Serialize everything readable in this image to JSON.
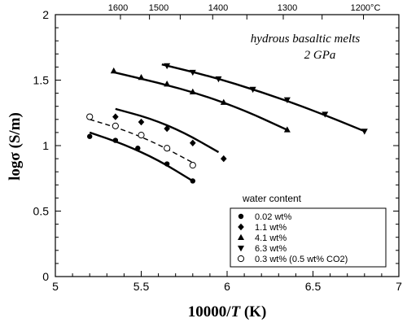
{
  "chart_data": {
    "type": "scatter",
    "title": "",
    "annotation": [
      "hydrous basaltic melts",
      "2 GPa"
    ],
    "xlabel_prefix": "10000/",
    "xlabel_var": "T",
    "xlabel_unit": " (K)",
    "ylabel": "logσ (S/m)",
    "xlim": [
      5,
      7
    ],
    "ylim": [
      0,
      2
    ],
    "xticks": [
      5,
      5.5,
      6,
      6.5,
      7
    ],
    "xtick_labels": [
      "5",
      "5.5",
      "6",
      "6.5",
      "7"
    ],
    "xminor": [
      5.1,
      5.2,
      5.3,
      5.4,
      5.6,
      5.7,
      5.8,
      5.9,
      6.1,
      6.2,
      6.3,
      6.4,
      6.6,
      6.7,
      6.8,
      6.9
    ],
    "yticks": [
      0,
      0.5,
      1,
      1.5,
      2
    ],
    "ytick_labels": [
      "0",
      "0.5",
      "1",
      "1.5",
      "2"
    ],
    "yminor": [
      0.1,
      0.2,
      0.3,
      0.4,
      0.6,
      0.7,
      0.8,
      0.9,
      1.1,
      1.2,
      1.3,
      1.4,
      1.6,
      1.7,
      1.8,
      1.9
    ],
    "top_axis": {
      "ticks": [
        {
          "x": 5.379,
          "label": "1600"
        },
        {
          "x": 5.548,
          "label": ""
        },
        {
          "x": 5.727,
          "label": "1500"
        },
        {
          "x": 5.916,
          "label": ""
        },
        {
          "x": 6.115,
          "label": "1400"
        },
        {
          "x": 6.327,
          "label": ""
        },
        {
          "x": 6.553,
          "label": "1300"
        },
        {
          "x": 6.794,
          "label": ""
        }
      ],
      "labels": [
        {
          "x": 5.37,
          "label": "1600"
        },
        {
          "x": 5.5,
          "label": "1500"
        },
        {
          "x": 5.7,
          "label": "1400"
        },
        {
          "x": 6.0,
          "label": "1300"
        },
        {
          "x": 6.5,
          "label": "1200°C"
        }
      ]
    },
    "legend_title": "water content",
    "legend_position": "bottom-right",
    "series": [
      {
        "name": "0.02 wt%",
        "marker": "circle-filled",
        "points": [
          [
            5.2,
            1.07
          ],
          [
            5.35,
            1.04
          ],
          [
            5.48,
            0.98
          ],
          [
            5.65,
            0.86
          ],
          [
            5.8,
            0.73
          ]
        ],
        "fit": [
          [
            5.2,
            1.1
          ],
          [
            5.4,
            1.01
          ],
          [
            5.6,
            0.89
          ],
          [
            5.8,
            0.73
          ]
        ],
        "fit_style": "solid"
      },
      {
        "name": "1.1 wt%",
        "marker": "diamond-filled",
        "points": [
          [
            5.35,
            1.22
          ],
          [
            5.5,
            1.18
          ],
          [
            5.65,
            1.13
          ],
          [
            5.8,
            1.02
          ],
          [
            5.98,
            0.9
          ]
        ],
        "fit": [
          [
            5.35,
            1.28
          ],
          [
            5.55,
            1.21
          ],
          [
            5.75,
            1.1
          ],
          [
            5.95,
            0.95
          ]
        ],
        "fit_style": "solid"
      },
      {
        "name": "4.1 wt%",
        "marker": "triangle-up-filled",
        "points": [
          [
            5.34,
            1.57
          ],
          [
            5.5,
            1.52
          ],
          [
            5.65,
            1.47
          ],
          [
            5.8,
            1.41
          ],
          [
            5.98,
            1.33
          ],
          [
            6.35,
            1.12
          ]
        ],
        "fit": [
          [
            5.34,
            1.56
          ],
          [
            5.6,
            1.48
          ],
          [
            5.85,
            1.39
          ],
          [
            6.1,
            1.27
          ],
          [
            6.35,
            1.12
          ]
        ],
        "fit_style": "solid"
      },
      {
        "name": "6.3 wt%",
        "marker": "triangle-down-filled",
        "points": [
          [
            5.65,
            1.61
          ],
          [
            5.8,
            1.56
          ],
          [
            5.95,
            1.51
          ],
          [
            6.15,
            1.43
          ],
          [
            6.35,
            1.35
          ],
          [
            6.57,
            1.24
          ],
          [
            6.8,
            1.11
          ]
        ],
        "fit": [
          [
            5.62,
            1.62
          ],
          [
            5.9,
            1.53
          ],
          [
            6.2,
            1.41
          ],
          [
            6.5,
            1.27
          ],
          [
            6.8,
            1.11
          ]
        ],
        "fit_style": "solid"
      },
      {
        "name": "0.3 wt% (0.5 wt% CO2)",
        "marker": "circle-open",
        "points": [
          [
            5.2,
            1.22
          ],
          [
            5.35,
            1.15
          ],
          [
            5.5,
            1.08
          ],
          [
            5.65,
            0.98
          ],
          [
            5.8,
            0.85
          ]
        ],
        "fit": [
          [
            5.2,
            1.2
          ],
          [
            5.4,
            1.12
          ],
          [
            5.6,
            1.01
          ],
          [
            5.8,
            0.87
          ]
        ],
        "fit_style": "dashed"
      }
    ]
  }
}
